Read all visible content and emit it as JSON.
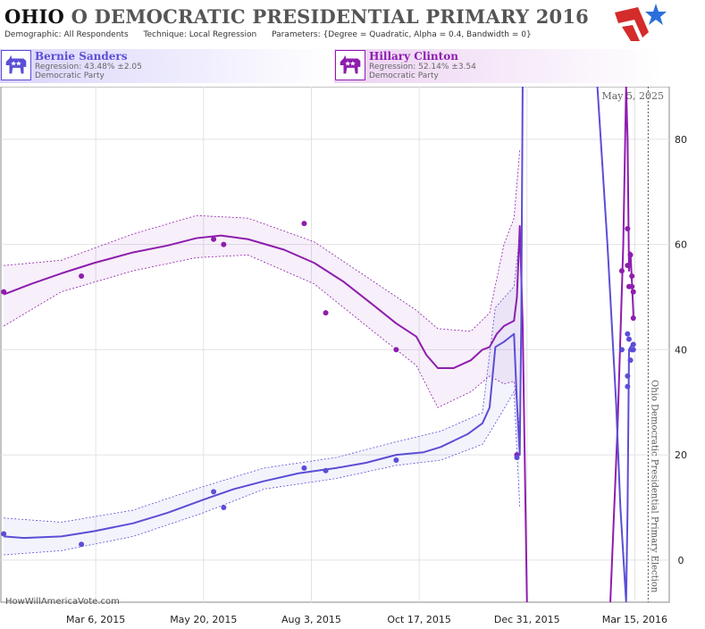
{
  "header": {
    "state": "OHIO",
    "title_rest": "O DEMOCRATIC PRESIDENTIAL PRIMARY 2016",
    "demographic_label": "Demographic:",
    "demographic_value": "All Respondents",
    "technique_label": "Technique:",
    "technique_value": "Local Regression",
    "parameters_label": "Parameters:",
    "parameters_value": "{Degree = Quadratic, Alpha = 0.4, Bandwidth = 0}"
  },
  "candidates": [
    {
      "name": "Bernie Sanders",
      "regression": "Regression: 43.48% ±2.05",
      "party": "Democratic Party",
      "color": "#5b4ed6"
    },
    {
      "name": "Hillary Clinton",
      "regression": "Regression: 52.14% ±3.54",
      "party": "Democratic Party",
      "color": "#8e1dae"
    }
  ],
  "watermark": "HowWillAmericaVote.com",
  "icons": {
    "candidate": "donkey-icon",
    "logo": "star-logo-icon"
  },
  "chart_data": {
    "type": "line",
    "date_label": "May 5, 2025",
    "election_label": "Ohio Democratic Presidential Primary Election",
    "election_date": "2016-03-15",
    "x_range": [
      "2014-12-30",
      "2016-04-08"
    ],
    "ylim": [
      -8,
      90
    ],
    "y_ticks": [
      0,
      20,
      40,
      60,
      80
    ],
    "x_ticks": [
      {
        "date": "2015-03-06",
        "label": "Mar 6, 2015"
      },
      {
        "date": "2015-05-20",
        "label": "May 20, 2015"
      },
      {
        "date": "2015-08-03",
        "label": "Aug 3, 2015"
      },
      {
        "date": "2015-10-17",
        "label": "Oct 17, 2015"
      },
      {
        "date": "2015-12-31",
        "label": "Dec 31, 2015"
      },
      {
        "date": "2016-03-15",
        "label": "Mar 15, 2016"
      }
    ],
    "series": [
      {
        "name": "Hillary Clinton",
        "color": "#8e1dae",
        "points": [
          [
            "2015-01-01",
            51
          ],
          [
            "2015-02-24",
            54
          ],
          [
            "2015-05-27",
            61
          ],
          [
            "2015-06-03",
            60
          ],
          [
            "2015-07-29",
            64
          ],
          [
            "2015-08-13",
            47
          ],
          [
            "2015-10-01",
            40
          ],
          [
            "2015-12-24",
            20
          ],
          [
            "2016-03-06",
            55
          ],
          [
            "2016-03-10",
            63
          ],
          [
            "2016-03-10",
            56
          ],
          [
            "2016-03-11",
            52
          ],
          [
            "2016-03-12",
            58
          ],
          [
            "2016-03-13",
            54
          ],
          [
            "2016-03-13",
            52
          ],
          [
            "2016-03-14",
            51
          ],
          [
            "2016-03-14",
            46
          ]
        ],
        "trend": [
          [
            "2015-01-01",
            50.5
          ],
          [
            "2015-01-20",
            52.5
          ],
          [
            "2015-02-10",
            54.5
          ],
          [
            "2015-03-05",
            56.5
          ],
          [
            "2015-04-01",
            58.5
          ],
          [
            "2015-04-25",
            59.8
          ],
          [
            "2015-05-15",
            61.2
          ],
          [
            "2015-06-01",
            61.7
          ],
          [
            "2015-06-20",
            61.0
          ],
          [
            "2015-07-15",
            59.0
          ],
          [
            "2015-08-05",
            56.5
          ],
          [
            "2015-08-25",
            53.0
          ],
          [
            "2015-09-15",
            48.5
          ],
          [
            "2015-10-01",
            45.0
          ],
          [
            "2015-10-15",
            42.5
          ],
          [
            "2015-10-22",
            39.0
          ],
          [
            "2015-10-30",
            36.5
          ],
          [
            "2015-11-10",
            36.5
          ],
          [
            "2015-11-22",
            38.0
          ],
          [
            "2015-11-30",
            40.0
          ],
          [
            "2015-12-05",
            40.5
          ],
          [
            "2015-12-10",
            43.0
          ],
          [
            "2015-12-15",
            44.5
          ],
          [
            "2015-12-22",
            45.5
          ],
          [
            "2015-12-24",
            50.0
          ],
          [
            "2015-12-26",
            63.5
          ],
          [
            "2015-12-28",
            45.0
          ],
          [
            "2015-12-31",
            -8.0
          ]
        ],
        "trend2": [
          [
            "2016-02-27",
            -8.0
          ],
          [
            "2016-03-03",
            25.0
          ],
          [
            "2016-03-07",
            60.0
          ],
          [
            "2016-03-09",
            90.0
          ],
          [
            "2016-03-10",
            80.0
          ],
          [
            "2016-03-11",
            55.0
          ],
          [
            "2016-03-12",
            58.5
          ],
          [
            "2016-03-13",
            53.0
          ],
          [
            "2016-03-14",
            47.0
          ],
          [
            "2016-03-14",
            45.5
          ]
        ],
        "band": [
          [
            "2015-01-01",
            44.5,
            56.0
          ],
          [
            "2015-02-10",
            51.0,
            57.0
          ],
          [
            "2015-04-01",
            55.0,
            62.0
          ],
          [
            "2015-05-15",
            57.5,
            65.5
          ],
          [
            "2015-06-20",
            58.0,
            65.0
          ],
          [
            "2015-08-05",
            52.5,
            60.5
          ],
          [
            "2015-09-15",
            43.5,
            53.0
          ],
          [
            "2015-10-15",
            37.0,
            47.5
          ],
          [
            "2015-10-30",
            29.0,
            44.0
          ],
          [
            "2015-11-22",
            32.0,
            43.5
          ],
          [
            "2015-12-05",
            35.0,
            47.0
          ],
          [
            "2015-12-15",
            33.5,
            60.0
          ],
          [
            "2015-12-22",
            34.0,
            65.0
          ],
          [
            "2015-12-26",
            25.0,
            78.0
          ]
        ]
      },
      {
        "name": "Bernie Sanders",
        "color": "#5b4ed6",
        "points": [
          [
            "2015-01-01",
            5
          ],
          [
            "2015-02-24",
            3
          ],
          [
            "2015-05-27",
            13
          ],
          [
            "2015-06-03",
            10
          ],
          [
            "2015-07-29",
            17.5
          ],
          [
            "2015-08-13",
            17
          ],
          [
            "2015-10-01",
            19
          ],
          [
            "2015-12-24",
            19.5
          ],
          [
            "2016-03-06",
            40
          ],
          [
            "2016-03-10",
            35
          ],
          [
            "2016-03-10",
            43
          ],
          [
            "2016-03-10",
            33
          ],
          [
            "2016-03-11",
            42
          ],
          [
            "2016-03-12",
            38
          ],
          [
            "2016-03-13",
            40
          ],
          [
            "2016-03-14",
            41
          ],
          [
            "2016-03-14",
            40
          ]
        ],
        "trend": [
          [
            "2015-01-01",
            4.5
          ],
          [
            "2015-01-15",
            4.2
          ],
          [
            "2015-02-10",
            4.5
          ],
          [
            "2015-03-05",
            5.5
          ],
          [
            "2015-04-01",
            7.0
          ],
          [
            "2015-04-25",
            9.0
          ],
          [
            "2015-05-20",
            11.5
          ],
          [
            "2015-06-10",
            13.5
          ],
          [
            "2015-07-01",
            15.0
          ],
          [
            "2015-07-25",
            16.5
          ],
          [
            "2015-08-20",
            17.5
          ],
          [
            "2015-09-10",
            18.5
          ],
          [
            "2015-10-01",
            20.0
          ],
          [
            "2015-10-20",
            20.5
          ],
          [
            "2015-11-01",
            21.5
          ],
          [
            "2015-11-20",
            24.0
          ],
          [
            "2015-11-30",
            26.0
          ],
          [
            "2015-12-05",
            29.0
          ],
          [
            "2015-12-09",
            40.5
          ],
          [
            "2015-12-15",
            41.5
          ],
          [
            "2015-12-22",
            43.0
          ],
          [
            "2015-12-24",
            30.0
          ],
          [
            "2015-12-26",
            20.0
          ],
          [
            "2015-12-27",
            45.0
          ],
          [
            "2015-12-28",
            90.0
          ]
        ],
        "trend2": [
          [
            "2016-02-18",
            90.0
          ],
          [
            "2016-02-25",
            60.0
          ],
          [
            "2016-03-02",
            30.0
          ],
          [
            "2016-03-05",
            10.0
          ],
          [
            "2016-03-09",
            -8.0
          ],
          [
            "2016-03-10",
            10.0
          ],
          [
            "2016-03-11",
            40.0
          ],
          [
            "2016-03-12",
            40.5
          ],
          [
            "2016-03-13",
            41.0
          ],
          [
            "2016-03-14",
            41.0
          ]
        ],
        "band": [
          [
            "2015-01-01",
            1.0,
            8.0
          ],
          [
            "2015-02-10",
            1.8,
            7.2
          ],
          [
            "2015-04-01",
            4.5,
            9.5
          ],
          [
            "2015-05-20",
            9.0,
            14.0
          ],
          [
            "2015-07-01",
            13.5,
            17.5
          ],
          [
            "2015-08-20",
            15.5,
            19.5
          ],
          [
            "2015-10-01",
            18.0,
            22.5
          ],
          [
            "2015-11-01",
            19.0,
            24.5
          ],
          [
            "2015-11-30",
            22.0,
            28.0
          ],
          [
            "2015-12-09",
            26.0,
            48.0
          ],
          [
            "2015-12-22",
            32.0,
            52.0
          ],
          [
            "2015-12-26",
            10.0,
            62.0
          ]
        ]
      }
    ]
  }
}
